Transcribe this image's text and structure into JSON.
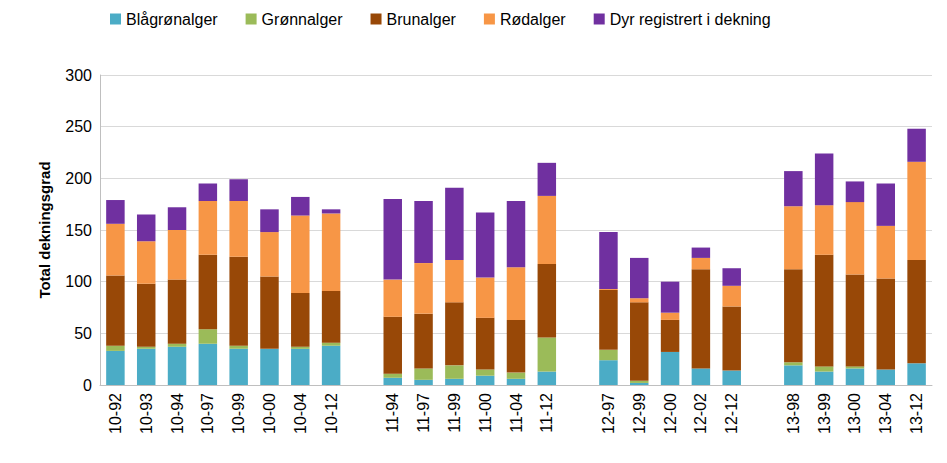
{
  "chart_data": {
    "type": "bar",
    "stacked": true,
    "ylabel": "Total dekningsgrad",
    "legend": "top",
    "grid": true,
    "categories": [
      "10-92",
      "10-93",
      "10-94",
      "10-97",
      "10-99",
      "10-00",
      "10-04",
      "10-12",
      null,
      "11-94",
      "11-97",
      "11-99",
      "11-00",
      "11-04",
      "11-12",
      null,
      "12-97",
      "12-99",
      "12-00",
      "12-02",
      "12-12",
      null,
      "13-98",
      "13-99",
      "13-00",
      "13-04",
      "13-12"
    ],
    "ylim": [
      0,
      300
    ],
    "yticks": [
      0,
      50,
      100,
      150,
      200,
      250,
      300
    ],
    "series": [
      {
        "name": "Blågrønalger",
        "color": "#4bacc6",
        "values": [
          33,
          35,
          37,
          40,
          35,
          35,
          35,
          38,
          null,
          7,
          5,
          6,
          9,
          6,
          13,
          null,
          24,
          2,
          32,
          16,
          14,
          null,
          19,
          13,
          16,
          15,
          21
        ]
      },
      {
        "name": "Grønnalger",
        "color": "#9bbb59",
        "values": [
          5,
          2,
          3,
          14,
          3,
          0,
          2,
          3,
          null,
          4,
          11,
          13,
          6,
          6,
          33,
          null,
          10,
          2,
          0,
          0,
          0,
          null,
          3,
          5,
          2,
          0,
          0
        ]
      },
      {
        "name": "Brunalger",
        "color": "#984807",
        "values": [
          68,
          61,
          62,
          72,
          86,
          70,
          52,
          50,
          null,
          55,
          53,
          61,
          50,
          51,
          71,
          null,
          58,
          76,
          31,
          96,
          62,
          null,
          90,
          108,
          89,
          88,
          100
        ]
      },
      {
        "name": "Rødalger",
        "color": "#f79646",
        "values": [
          50,
          41,
          48,
          52,
          54,
          43,
          75,
          75,
          null,
          36,
          49,
          41,
          39,
          51,
          66,
          null,
          1,
          4,
          7,
          11,
          20,
          null,
          61,
          48,
          70,
          51,
          95
        ]
      },
      {
        "name": "Dyr registrert i dekning",
        "color": "#7030a0",
        "values": [
          23,
          26,
          22,
          17,
          21,
          22,
          18,
          4,
          null,
          78,
          60,
          70,
          63,
          64,
          32,
          null,
          55,
          39,
          30,
          10,
          17,
          null,
          34,
          50,
          20,
          41,
          32
        ]
      }
    ]
  }
}
